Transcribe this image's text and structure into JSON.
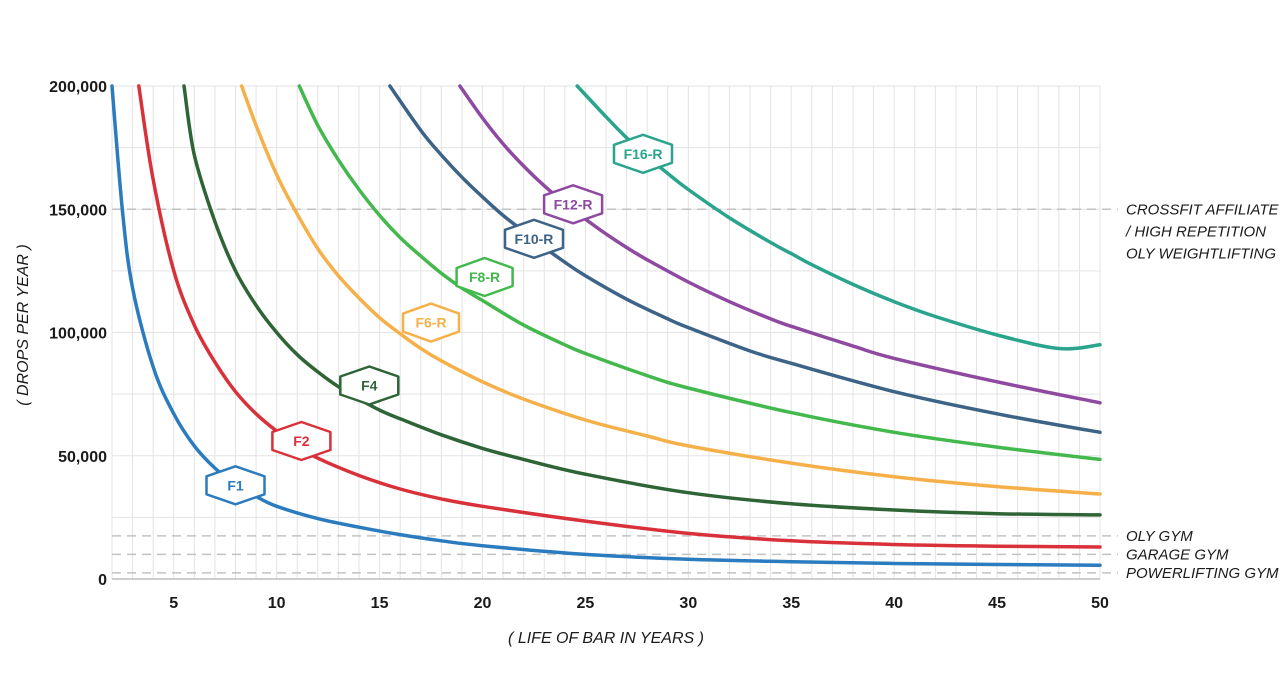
{
  "chart_data": {
    "type": "line",
    "title": "",
    "xlabel": "( LIFE OF BAR IN YEARS )",
    "ylabel": "( DROPS PER YEAR )",
    "xlim": [
      2,
      50
    ],
    "ylim": [
      0,
      200000
    ],
    "x_ticks": [
      5,
      10,
      15,
      20,
      25,
      30,
      35,
      40,
      45,
      50
    ],
    "x_tick_labels": [
      "5",
      "10",
      "15",
      "20",
      "25",
      "30",
      "35",
      "40",
      "45",
      "50"
    ],
    "y_ticks": [
      0,
      50000,
      100000,
      150000,
      200000
    ],
    "y_tick_labels": [
      "0",
      "50,000",
      "100,000",
      "150,000",
      "200,000"
    ],
    "grid": true,
    "legend": "none",
    "series": [
      {
        "name": "F1",
        "color": "#2b7bbf",
        "badge_x": 8.0,
        "badge_y": 38000,
        "x": [
          2,
          2.5,
          3,
          4,
          5,
          6,
          7,
          8,
          9,
          10,
          12,
          14,
          16,
          18,
          20,
          25,
          30,
          35,
          40,
          45,
          50
        ],
        "y": [
          200000,
          150000,
          118000,
          86000,
          67000,
          54000,
          45000,
          38500,
          33500,
          29500,
          24500,
          21000,
          18000,
          15500,
          13500,
          10000,
          8000,
          7000,
          6300,
          5900,
          5600
        ]
      },
      {
        "name": "F2",
        "color": "#d9313a",
        "badge_x": 11.2,
        "badge_y": 56000,
        "x": [
          3.3,
          4,
          5,
          6,
          7,
          8,
          9,
          10,
          11,
          12,
          14,
          16,
          18,
          20,
          25,
          30,
          35,
          40,
          45,
          50
        ],
        "y": [
          200000,
          162000,
          125000,
          103000,
          88000,
          76000,
          67000,
          60000,
          54000,
          49000,
          42000,
          36500,
          32500,
          29500,
          23500,
          18500,
          15500,
          14000,
          13300,
          13000
        ]
      },
      {
        "name": "F4",
        "color": "#2f6436",
        "badge_x": 14.5,
        "badge_y": 78500,
        "x": [
          5.5,
          6,
          7,
          8,
          9,
          10,
          11,
          12,
          13,
          14,
          15,
          16,
          18,
          20,
          22,
          25,
          30,
          35,
          40,
          45,
          50
        ],
        "y": [
          200000,
          172000,
          145000,
          125000,
          111000,
          100000,
          91000,
          84000,
          78000,
          73000,
          68500,
          65000,
          58500,
          53000,
          48500,
          42500,
          35000,
          30500,
          28000,
          26500,
          26000
        ]
      },
      {
        "name": "F6-R",
        "color": "#f5b04a",
        "badge_x": 17.5,
        "badge_y": 104000,
        "x": [
          8.3,
          9,
          10,
          11,
          12,
          13,
          14,
          15,
          16,
          17,
          18,
          20,
          22,
          25,
          28,
          30,
          35,
          40,
          45,
          50
        ],
        "y": [
          200000,
          184000,
          164000,
          148000,
          134000,
          123000,
          114000,
          106000,
          99500,
          93500,
          88500,
          80000,
          73000,
          64500,
          58000,
          54000,
          47000,
          41500,
          37500,
          34500
        ]
      },
      {
        "name": "F8-R",
        "color": "#43b84d",
        "badge_x": 20.1,
        "badge_y": 122500,
        "x": [
          11.1,
          12,
          13,
          14,
          15,
          16,
          17,
          18,
          19,
          20,
          22,
          24,
          25,
          28,
          30,
          35,
          40,
          45,
          50
        ],
        "y": [
          200000,
          184000,
          170000,
          158000,
          147500,
          138500,
          131000,
          124000,
          118000,
          113000,
          103000,
          95000,
          91500,
          82500,
          77500,
          67500,
          59500,
          53500,
          48500
        ]
      },
      {
        "name": "F10-R",
        "color": "#3d6386",
        "badge_x": 22.5,
        "badge_y": 138000,
        "x": [
          15.5,
          17,
          18,
          19,
          20,
          21,
          22,
          23,
          24,
          25,
          27,
          29,
          30,
          33,
          35,
          40,
          45,
          50
        ],
        "y": [
          200000,
          182000,
          172000,
          163000,
          155000,
          147500,
          141000,
          134500,
          128500,
          123000,
          113500,
          105500,
          102000,
          92500,
          87500,
          76000,
          67000,
          59500
        ]
      },
      {
        "name": "F12-R",
        "color": "#8e49a0",
        "badge_x": 24.4,
        "badge_y": 152000,
        "x": [
          18.9,
          20,
          21,
          22,
          23,
          24,
          25,
          26,
          27,
          28,
          30,
          32,
          34,
          35,
          38,
          40,
          45,
          50
        ],
        "y": [
          200000,
          187000,
          176500,
          167500,
          159500,
          152500,
          146000,
          140000,
          134500,
          129500,
          120500,
          112500,
          105500,
          102500,
          94500,
          89500,
          80000,
          71500
        ]
      },
      {
        "name": "F16-R",
        "color": "#2aa48d",
        "badge_x": 27.8,
        "badge_y": 172500,
        "x": [
          24.6,
          26,
          27,
          28,
          29,
          30,
          32,
          34,
          35,
          36,
          38,
          40,
          42,
          45,
          48,
          50
        ],
        "y": [
          200000,
          187500,
          179000,
          171500,
          164500,
          158000,
          146500,
          136500,
          132000,
          127500,
          119500,
          112500,
          106500,
          99000,
          93500,
          95000
        ]
      }
    ],
    "reference_lines": [
      {
        "label_lines": [
          "CROSSFIT AFFILIATE",
          "/ HIGH REPETITION",
          "OLY WEIGHTLIFTING"
        ],
        "y": 150000
      },
      {
        "label_lines": [
          "OLY GYM"
        ],
        "y": 17500
      },
      {
        "label_lines": [
          "GARAGE GYM"
        ],
        "y": 10000
      },
      {
        "label_lines": [
          "POWERLIFTING GYM"
        ],
        "y": 2500
      }
    ]
  }
}
